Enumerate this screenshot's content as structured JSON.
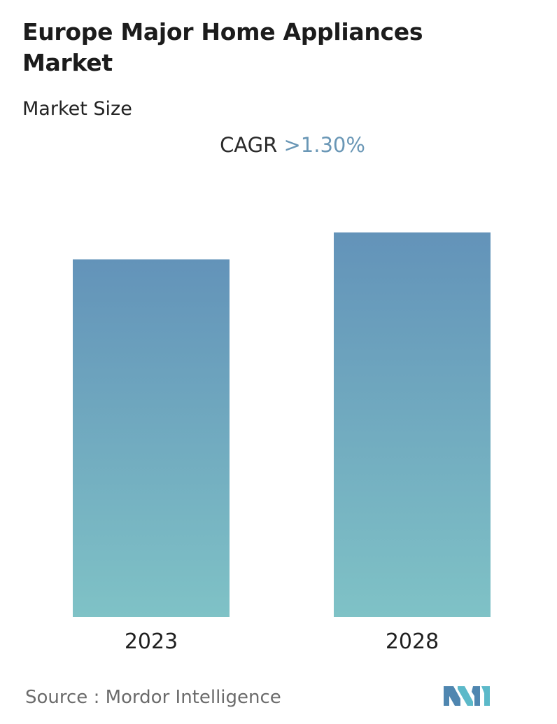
{
  "header": {
    "title": "Europe Major Home Appliances Market",
    "subtitle": "Market Size",
    "cagr_label": "CAGR",
    "cagr_value": ">1.30%"
  },
  "chart_data": {
    "type": "bar",
    "categories": [
      "2023",
      "2028"
    ],
    "values": [
      93,
      100
    ],
    "title": "Europe Major Home Appliances Market",
    "subtitle": "Market Size",
    "xlabel": "",
    "ylabel": "",
    "ylim": [
      0,
      100
    ],
    "grid": false,
    "legend": "none",
    "annotations": [
      "CAGR >1.30%"
    ],
    "colors": {
      "bar_top": "#6393b9",
      "bar_bottom": "#7fc2c6"
    }
  },
  "footer": {
    "source": "Source :  Mordor Intelligence",
    "logo_icon": "mordor-intelligence-logo-icon",
    "logo_colors": [
      "#4f86b0",
      "#5cb9c9"
    ]
  }
}
